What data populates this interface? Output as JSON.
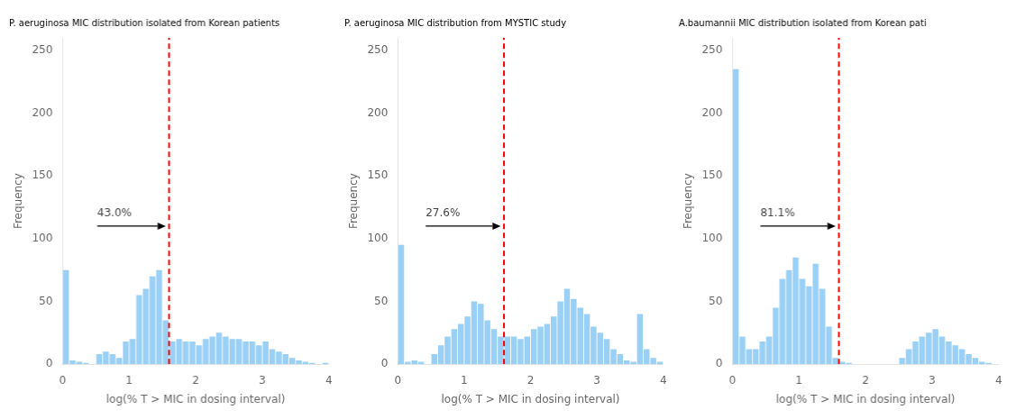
{
  "chart_data": [
    {
      "type": "histogram",
      "title": "P. aeruginosa MIC distribution isolated from Korean patients",
      "xlabel": "log(% T > MIC in dosing interval)",
      "ylabel": "Frequency",
      "bins": [
        0,
        0.1,
        0.2,
        0.3,
        0.4,
        0.5,
        0.6,
        0.7,
        0.8,
        0.9,
        1,
        1.1,
        1.2,
        1.3,
        1.4,
        1.5,
        1.6,
        1.7,
        1.8,
        1.9,
        2,
        2.1,
        2.2,
        2.3,
        2.4,
        2.5,
        2.6,
        2.7,
        2.8,
        2.9,
        3,
        3.1,
        3.2,
        3.3,
        3.4,
        3.5,
        3.6,
        3.7,
        3.8,
        3.9,
        4
      ],
      "values": [
        75,
        3,
        2,
        1,
        0,
        8,
        10,
        8,
        5,
        18,
        20,
        55,
        60,
        70,
        75,
        35,
        18,
        20,
        18,
        18,
        15,
        20,
        22,
        25,
        22,
        20,
        20,
        18,
        18,
        15,
        18,
        12,
        10,
        8,
        5,
        3,
        2,
        1,
        0,
        1
      ],
      "xlim": [
        0,
        4
      ],
      "ylim": [
        0,
        260
      ],
      "xticks": [
        0,
        1,
        2,
        3,
        4
      ],
      "yticks": [
        0,
        50,
        100,
        150,
        200,
        250
      ],
      "grid": false,
      "vline": {
        "x": 1.6,
        "color": "red",
        "line_style": "dashed"
      },
      "arrow": {
        "x_start": 0.52,
        "x_end": 1.55,
        "y": 110
      },
      "annotations": [
        {
          "text": "43.0%",
          "x": 0.52,
          "y": 116
        }
      ]
    },
    {
      "type": "histogram",
      "title": "P. aeruginosa MIC distribution from MYSTIC study",
      "xlabel": "log(% T > MIC in dosing interval)",
      "ylabel": "Frequency",
      "bins": [
        0,
        0.1,
        0.2,
        0.3,
        0.4,
        0.5,
        0.6,
        0.7,
        0.8,
        0.9,
        1,
        1.1,
        1.2,
        1.3,
        1.4,
        1.5,
        1.6,
        1.7,
        1.8,
        1.9,
        2,
        2.1,
        2.2,
        2.3,
        2.4,
        2.5,
        2.6,
        2.7,
        2.8,
        2.9,
        3,
        3.1,
        3.2,
        3.3,
        3.4,
        3.5,
        3.6,
        3.7,
        3.8,
        3.9,
        4
      ],
      "values": [
        95,
        2,
        3,
        2,
        0,
        8,
        15,
        22,
        28,
        32,
        38,
        50,
        48,
        35,
        28,
        22,
        22,
        22,
        20,
        22,
        28,
        30,
        32,
        38,
        50,
        60,
        52,
        45,
        40,
        30,
        25,
        20,
        12,
        8,
        3,
        2,
        40,
        12,
        5,
        2
      ],
      "xlim": [
        0,
        4
      ],
      "ylim": [
        0,
        260
      ],
      "xticks": [
        0,
        1,
        2,
        3,
        4
      ],
      "yticks": [
        0,
        50,
        100,
        150,
        200,
        250
      ],
      "grid": false,
      "vline": {
        "x": 1.6,
        "color": "red",
        "line_style": "dashed"
      },
      "arrow": {
        "x_start": 0.42,
        "x_end": 1.55,
        "y": 110
      },
      "annotations": [
        {
          "text": "27.6%",
          "x": 0.42,
          "y": 116
        }
      ]
    },
    {
      "type": "histogram",
      "title": "A.baumannii MIC distribution isolated from Korean pati",
      "xlabel": "log(% T > MIC in dosing interval)",
      "ylabel": "Frequency",
      "bins": [
        0,
        0.1,
        0.2,
        0.3,
        0.4,
        0.5,
        0.6,
        0.7,
        0.8,
        0.9,
        1,
        1.1,
        1.2,
        1.3,
        1.4,
        1.5,
        1.6,
        1.7,
        1.8,
        1.9,
        2,
        2.1,
        2.2,
        2.3,
        2.4,
        2.5,
        2.6,
        2.7,
        2.8,
        2.9,
        3,
        3.1,
        3.2,
        3.3,
        3.4,
        3.5,
        3.6,
        3.7,
        3.8,
        3.9,
        4
      ],
      "values": [
        235,
        22,
        12,
        12,
        18,
        22,
        45,
        68,
        75,
        85,
        68,
        62,
        80,
        60,
        30,
        5,
        2,
        1,
        0,
        0,
        0,
        0,
        0,
        0,
        0,
        5,
        12,
        18,
        22,
        25,
        28,
        22,
        18,
        15,
        12,
        8,
        5,
        2,
        1,
        0
      ],
      "xlim": [
        0,
        4
      ],
      "ylim": [
        0,
        260
      ],
      "xticks": [
        0,
        1,
        2,
        3,
        4
      ],
      "yticks": [
        0,
        50,
        100,
        150,
        200,
        250
      ],
      "grid": false,
      "vline": {
        "x": 1.6,
        "color": "red",
        "line_style": "dashed"
      },
      "arrow": {
        "x_start": 0.42,
        "x_end": 1.55,
        "y": 110
      },
      "annotations": [
        {
          "text": "81.1%",
          "x": 0.42,
          "y": 116
        }
      ]
    }
  ]
}
